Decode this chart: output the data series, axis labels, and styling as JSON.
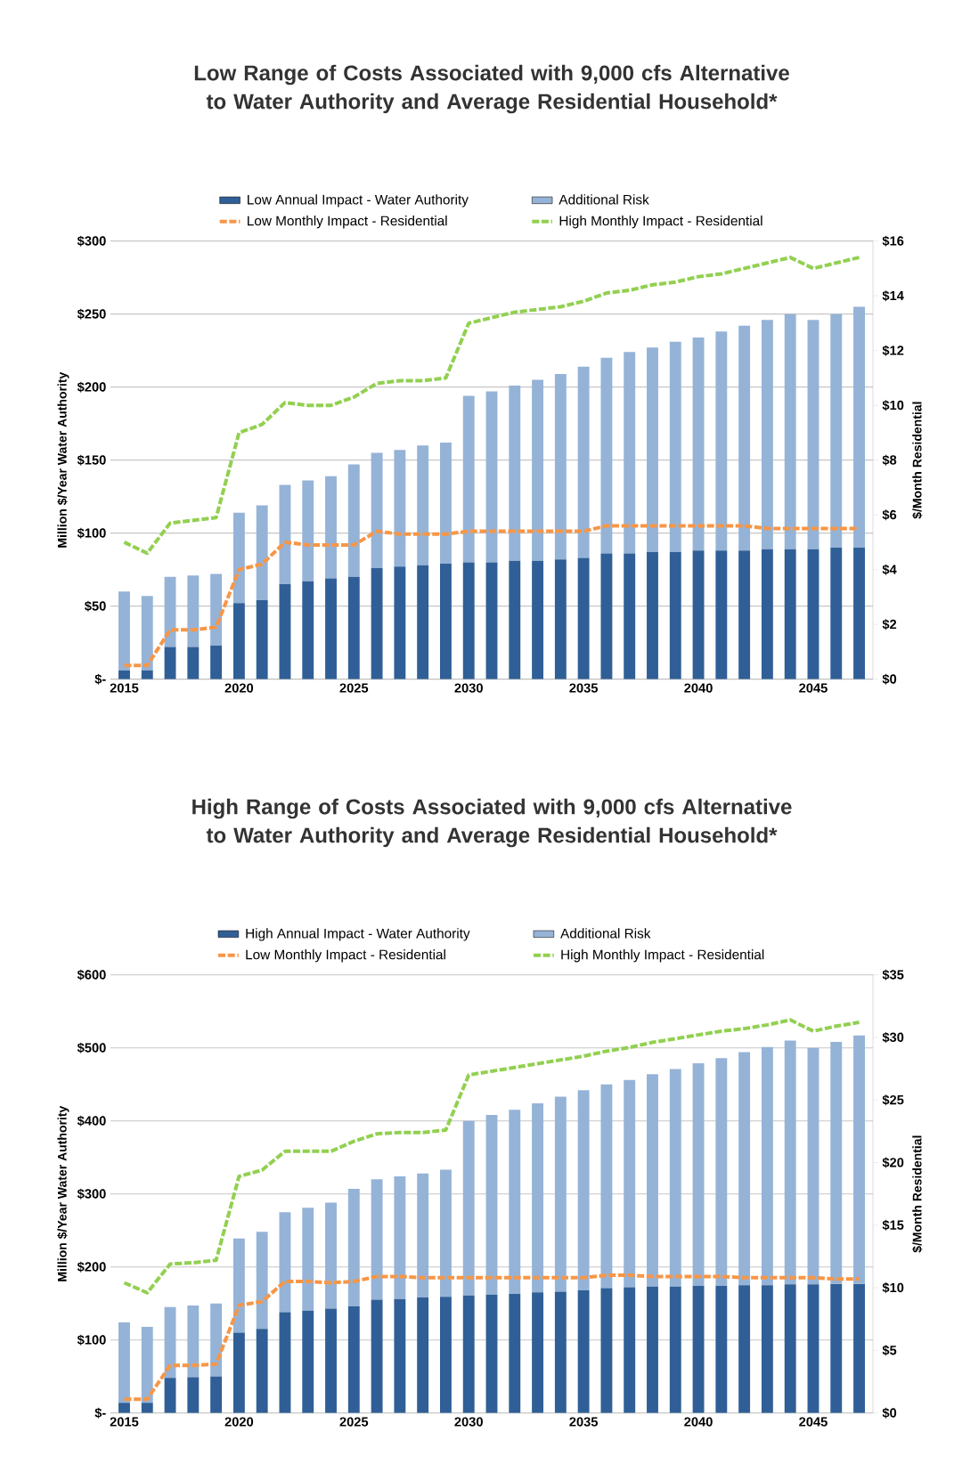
{
  "chart_data": [
    {
      "type": "bar",
      "title": "Low Range of Costs Associated with 9,000 cfs Alternative to Water Authority and Average Residential Household*",
      "ylabel": "Million $/Year Water Authority",
      "y2label": "$/Month Residential",
      "stacked": true,
      "grid": "y",
      "legend": "top",
      "x": [
        2015,
        2016,
        2017,
        2018,
        2019,
        2020,
        2021,
        2022,
        2023,
        2024,
        2025,
        2026,
        2027,
        2028,
        2029,
        2030,
        2031,
        2032,
        2033,
        2034,
        2035,
        2036,
        2037,
        2038,
        2039,
        2040,
        2041,
        2042,
        2043,
        2044,
        2045,
        2046,
        2047
      ],
      "xlim": [
        2014.4,
        2047.6
      ],
      "xticks": [
        2015,
        2020,
        2025,
        2030,
        2035,
        2040,
        2045
      ],
      "ylim": [
        0,
        300
      ],
      "yticks": [
        {
          "value": 0,
          "label": "$-"
        },
        {
          "value": 50,
          "label": "$50"
        },
        {
          "value": 100,
          "label": "$100"
        },
        {
          "value": 150,
          "label": "$150"
        },
        {
          "value": 200,
          "label": "$200"
        },
        {
          "value": 250,
          "label": "$250"
        },
        {
          "value": 300,
          "label": "$300"
        }
      ],
      "y2lim": [
        0,
        16
      ],
      "y2ticks": [
        {
          "value": 0,
          "label": "$0"
        },
        {
          "value": 2,
          "label": "$2"
        },
        {
          "value": 4,
          "label": "$4"
        },
        {
          "value": 6,
          "label": "$6"
        },
        {
          "value": 8,
          "label": "$8"
        },
        {
          "value": 10,
          "label": "$10"
        },
        {
          "value": 12,
          "label": "$12"
        },
        {
          "value": 14,
          "label": "$14"
        },
        {
          "value": 16,
          "label": "$16"
        }
      ],
      "series": [
        {
          "name": "Low Annual Impact - Water Authority",
          "color": "#2f5f96",
          "values": [
            6,
            6,
            22,
            22,
            23,
            52,
            54,
            65,
            67,
            69,
            70,
            76,
            77,
            78,
            79,
            80,
            80,
            81,
            81,
            82,
            83,
            86,
            86,
            87,
            87,
            88,
            88,
            88,
            89,
            89,
            89,
            90,
            90
          ]
        },
        {
          "name": "Additional Risk",
          "color": "#95b3d7",
          "values": [
            54,
            51,
            48,
            49,
            49,
            62,
            65,
            68,
            69,
            70,
            77,
            79,
            80,
            82,
            83,
            114,
            117,
            120,
            124,
            127,
            131,
            134,
            138,
            140,
            144,
            146,
            150,
            154,
            157,
            161,
            157,
            160,
            165
          ]
        },
        {
          "name": "Low Monthly Impact - Residential",
          "type": "line",
          "axis": "y2",
          "line_style": "dashed",
          "color": "#f79646",
          "values": [
            0.5,
            0.5,
            1.8,
            1.8,
            1.9,
            4.0,
            4.2,
            5.0,
            4.9,
            4.9,
            4.9,
            5.4,
            5.3,
            5.3,
            5.3,
            5.4,
            5.4,
            5.4,
            5.4,
            5.4,
            5.4,
            5.6,
            5.6,
            5.6,
            5.6,
            5.6,
            5.6,
            5.6,
            5.5,
            5.5,
            5.5,
            5.5,
            5.5
          ]
        },
        {
          "name": "High Monthly Impact - Residential",
          "type": "line",
          "axis": "y2",
          "line_style": "dashed",
          "color": "#92d050",
          "values": [
            5.0,
            4.6,
            5.7,
            5.8,
            5.9,
            9.0,
            9.3,
            10.1,
            10.0,
            10.0,
            10.3,
            10.8,
            10.9,
            10.9,
            11.0,
            13.0,
            13.2,
            13.4,
            13.5,
            13.6,
            13.8,
            14.1,
            14.2,
            14.4,
            14.5,
            14.7,
            14.8,
            15.0,
            15.2,
            15.4,
            15.0,
            15.2,
            15.4
          ]
        }
      ]
    },
    {
      "type": "bar",
      "title": "High Range of Costs Associated with 9,000 cfs Alternative to Water Authority and Average Residential Household*",
      "ylabel": "Million $/Year Water Authority",
      "y2label": "$/Month Residential",
      "stacked": true,
      "grid": "y",
      "legend": "top",
      "x": [
        2015,
        2016,
        2017,
        2018,
        2019,
        2020,
        2021,
        2022,
        2023,
        2024,
        2025,
        2026,
        2027,
        2028,
        2029,
        2030,
        2031,
        2032,
        2033,
        2034,
        2035,
        2036,
        2037,
        2038,
        2039,
        2040,
        2041,
        2042,
        2043,
        2044,
        2045,
        2046,
        2047
      ],
      "xlim": [
        2014.4,
        2047.6
      ],
      "xticks": [
        2015,
        2020,
        2025,
        2030,
        2035,
        2040,
        2045
      ],
      "ylim": [
        0,
        600
      ],
      "yticks": [
        {
          "value": 0,
          "label": "$-"
        },
        {
          "value": 100,
          "label": "$100"
        },
        {
          "value": 200,
          "label": "$200"
        },
        {
          "value": 300,
          "label": "$300"
        },
        {
          "value": 400,
          "label": "$400"
        },
        {
          "value": 500,
          "label": "$500"
        },
        {
          "value": 600,
          "label": "$600"
        }
      ],
      "y2lim": [
        0,
        35
      ],
      "y2ticks": [
        {
          "value": 0,
          "label": "$0"
        },
        {
          "value": 5,
          "label": "$5"
        },
        {
          "value": 10,
          "label": "$10"
        },
        {
          "value": 15,
          "label": "$15"
        },
        {
          "value": 20,
          "label": "$20"
        },
        {
          "value": 25,
          "label": "$25"
        },
        {
          "value": 30,
          "label": "$30"
        },
        {
          "value": 35,
          "label": "$35"
        }
      ],
      "series": [
        {
          "name": "High Annual Impact - Water Authority",
          "color": "#2f5f96",
          "values": [
            14,
            14,
            48,
            49,
            50,
            110,
            115,
            138,
            140,
            143,
            146,
            155,
            156,
            158,
            159,
            161,
            162,
            163,
            165,
            166,
            168,
            171,
            172,
            173,
            173,
            174,
            174,
            175,
            175,
            176,
            176,
            177,
            177
          ]
        },
        {
          "name": "Additional Risk",
          "color": "#95b3d7",
          "values": [
            110,
            104,
            97,
            98,
            100,
            129,
            133,
            137,
            141,
            145,
            161,
            165,
            168,
            170,
            174,
            239,
            246,
            252,
            259,
            267,
            274,
            279,
            284,
            291,
            298,
            305,
            312,
            319,
            326,
            334,
            324,
            331,
            340
          ]
        },
        {
          "name": "Low Monthly Impact - Residential",
          "type": "line",
          "axis": "y2",
          "line_style": "dashed",
          "color": "#f79646",
          "values": [
            1.1,
            1.1,
            3.8,
            3.8,
            3.9,
            8.6,
            8.9,
            10.5,
            10.5,
            10.4,
            10.5,
            10.9,
            10.9,
            10.8,
            10.8,
            10.8,
            10.8,
            10.8,
            10.8,
            10.8,
            10.8,
            11.0,
            11.0,
            10.9,
            10.9,
            10.9,
            10.9,
            10.8,
            10.8,
            10.8,
            10.8,
            10.7,
            10.7
          ]
        },
        {
          "name": "High Monthly Impact - Residential",
          "type": "line",
          "axis": "y2",
          "line_style": "dashed",
          "color": "#92d050",
          "values": [
            10.4,
            9.6,
            11.9,
            12.0,
            12.2,
            18.9,
            19.4,
            20.9,
            20.9,
            20.9,
            21.7,
            22.3,
            22.4,
            22.4,
            22.6,
            27.0,
            27.3,
            27.6,
            27.9,
            28.2,
            28.5,
            28.9,
            29.2,
            29.6,
            29.9,
            30.2,
            30.5,
            30.7,
            31.0,
            31.4,
            30.5,
            30.9,
            31.2
          ]
        }
      ]
    }
  ]
}
